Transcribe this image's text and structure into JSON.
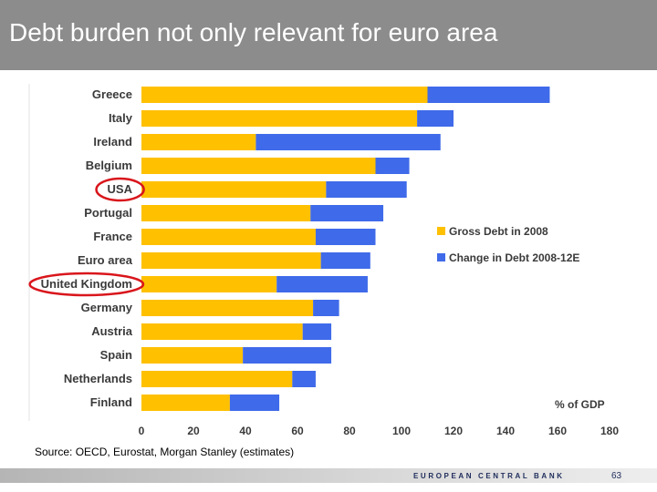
{
  "slide": {
    "title": "Debt burden not only relevant for euro area",
    "source": "Source: OECD, Eurostat, Morgan Stanley (estimates)",
    "footer_brand": "EUROPEAN CENTRAL BANK",
    "page_number": "63"
  },
  "chart_data": {
    "type": "bar",
    "orientation": "horizontal",
    "stacked": true,
    "categories": [
      "Greece",
      "Italy",
      "Ireland",
      "Belgium",
      "USA",
      "Portugal",
      "France",
      "Euro area",
      "United Kingdom",
      "Germany",
      "Austria",
      "Spain",
      "Netherlands",
      "Finland"
    ],
    "series": [
      {
        "name": "Gross Debt in 2008",
        "color": "#ffc000",
        "values": [
          110,
          106,
          44,
          90,
          71,
          65,
          67,
          69,
          52,
          66,
          62,
          39,
          58,
          34
        ]
      },
      {
        "name": "Change in Debt 2008-12E",
        "color": "#3f6ae9",
        "values": [
          47,
          14,
          71,
          13,
          31,
          28,
          23,
          19,
          35,
          10,
          11,
          34,
          9,
          19
        ]
      }
    ],
    "x_ticks": [
      "0",
      "20",
      "40",
      "60",
      "80",
      "100",
      "120",
      "140",
      "160",
      "180"
    ],
    "xlim": [
      0,
      180
    ],
    "unit_label": "% of GDP",
    "legend_position": "right",
    "grid": false,
    "highlighted_categories": [
      "USA",
      "United Kingdom"
    ],
    "highlight_color": "#d9161c"
  }
}
